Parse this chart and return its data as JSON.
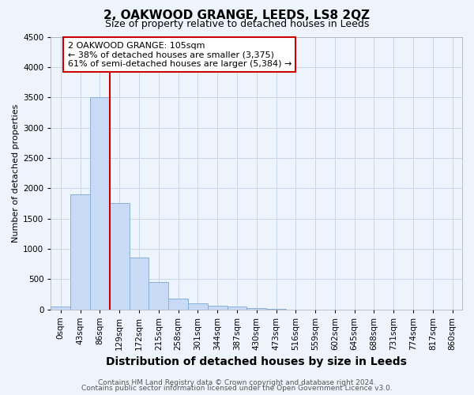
{
  "title": "2, OAKWOOD GRANGE, LEEDS, LS8 2QZ",
  "subtitle": "Size of property relative to detached houses in Leeds",
  "xlabel": "Distribution of detached houses by size in Leeds",
  "ylabel": "Number of detached properties",
  "bar_labels": [
    "0sqm",
    "43sqm",
    "86sqm",
    "129sqm",
    "172sqm",
    "215sqm",
    "258sqm",
    "301sqm",
    "344sqm",
    "387sqm",
    "430sqm",
    "473sqm",
    "516sqm",
    "559sqm",
    "602sqm",
    "645sqm",
    "688sqm",
    "731sqm",
    "774sqm",
    "817sqm",
    "860sqm"
  ],
  "bar_values": [
    40,
    1900,
    3500,
    1760,
    850,
    450,
    175,
    95,
    65,
    40,
    25,
    5,
    0,
    0,
    0,
    0,
    0,
    0,
    0,
    0,
    0
  ],
  "bar_color": "#c8daf5",
  "bar_edge_color": "#8ab0d8",
  "vline_color": "#cc0000",
  "annotation_text": "2 OAKWOOD GRANGE: 105sqm\n← 38% of detached houses are smaller (3,375)\n61% of semi-detached houses are larger (5,384) →",
  "annotation_box_color": "#ffffff",
  "annotation_box_edge_color": "#cc0000",
  "ylim": [
    0,
    4500
  ],
  "yticks": [
    0,
    500,
    1000,
    1500,
    2000,
    2500,
    3000,
    3500,
    4000,
    4500
  ],
  "grid_color": "#c8d8e8",
  "background_color": "#eef4fc",
  "footer_line1": "Contains HM Land Registry data © Crown copyright and database right 2024.",
  "footer_line2": "Contains public sector information licensed under the Open Government Licence v3.0.",
  "title_fontsize": 11,
  "subtitle_fontsize": 9,
  "xlabel_fontsize": 10,
  "ylabel_fontsize": 8,
  "tick_fontsize": 7.5,
  "annotation_fontsize": 8,
  "footer_fontsize": 6.5
}
